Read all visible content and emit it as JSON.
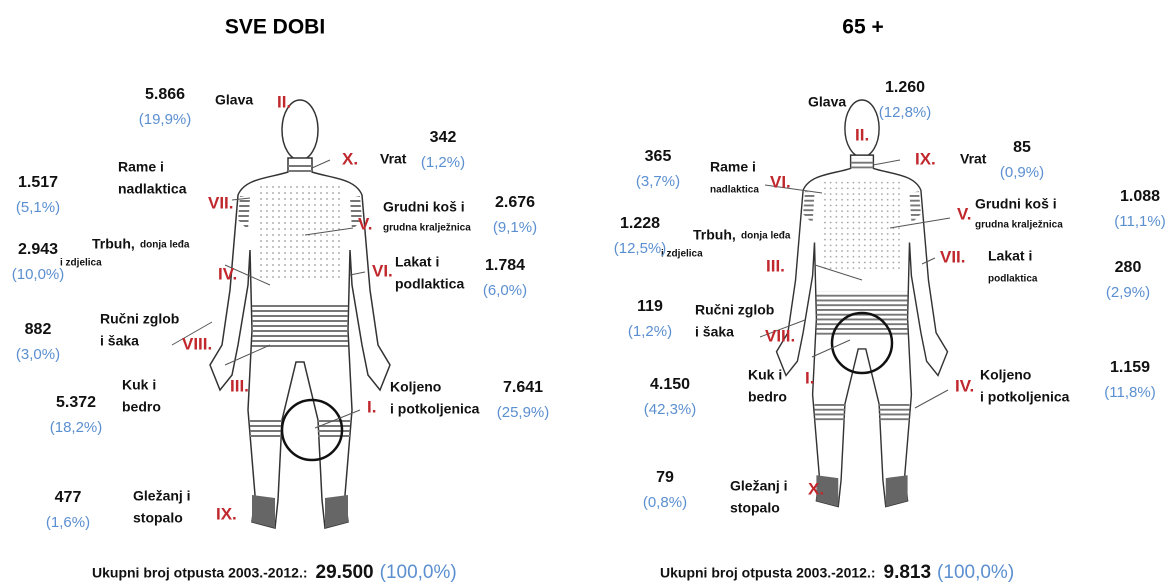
{
  "panels": [
    {
      "title": "SVE DOBI",
      "regions": [
        {
          "name": [
            "Glava"
          ],
          "numeral": "II.",
          "count": "5.866",
          "percent": "(19,9%)"
        },
        {
          "name": [
            "Vrat"
          ],
          "numeral": "X.",
          "count": "342",
          "percent": "(1,2%)"
        },
        {
          "name": [
            "Rame i",
            "nadlaktica"
          ],
          "numeral": "VII.",
          "count": "1.517",
          "percent": "(5,1%)"
        },
        {
          "name": [
            "Grudni koš i",
            "grudna kralježnica"
          ],
          "numeral": "V.",
          "count": "2.676",
          "percent": "(9,1%)"
        },
        {
          "name": [
            "Trbuh,",
            "donja leđa",
            "i zdjelica"
          ],
          "numeral": "IV.",
          "count": "2.943",
          "percent": "(10,0%)"
        },
        {
          "name": [
            "Lakat i",
            "podlaktica"
          ],
          "numeral": "VI.",
          "count": "1.784",
          "percent": "(6,0%)"
        },
        {
          "name": [
            "Ručni zglob",
            "i šaka"
          ],
          "numeral": "VIII.",
          "count": "882",
          "percent": "(3,0%)"
        },
        {
          "name": [
            "Kuk i",
            "bedro"
          ],
          "numeral": "III.",
          "count": "5.372",
          "percent": "(18,2%)"
        },
        {
          "name": [
            "Koljeno",
            "i potkoljenica"
          ],
          "numeral": "I.",
          "count": "7.641",
          "percent": "(25,9%)"
        },
        {
          "name": [
            "Gležanj i",
            "stopalo"
          ],
          "numeral": "IX.",
          "count": "477",
          "percent": "(1,6%)"
        }
      ],
      "footer": {
        "label": "Ukupni broj otpusta 2003.-2012.:",
        "total": "29.500",
        "percent": "(100,0%)"
      }
    },
    {
      "title": "65 +",
      "regions": [
        {
          "name": [
            "Glava"
          ],
          "numeral": "II.",
          "count": "1.260",
          "percent": "(12,8%)"
        },
        {
          "name": [
            "Vrat"
          ],
          "numeral": "IX.",
          "count": "85",
          "percent": "(0,9%)"
        },
        {
          "name": [
            "Rame i",
            "nadlaktica"
          ],
          "numeral": "VI.",
          "count": "365",
          "percent": "(3,7%)"
        },
        {
          "name": [
            "Grudni koš i",
            "grudna kralježnica"
          ],
          "numeral": "V.",
          "count": "1.088",
          "percent": "(11,1%)"
        },
        {
          "name": [
            "Trbuh,",
            "donja leđa",
            "i zdjelica"
          ],
          "numeral": "III.",
          "count": "1.228",
          "percent": "(12,5%)"
        },
        {
          "name": [
            "Lakat i",
            "podlaktica"
          ],
          "numeral": "VII.",
          "count": "280",
          "percent": "(2,9%)"
        },
        {
          "name": [
            "Ručni zglob",
            "i šaka"
          ],
          "numeral": "VIII.",
          "count": "119",
          "percent": "(1,2%)"
        },
        {
          "name": [
            "Kuk i",
            "bedro"
          ],
          "numeral": "I.",
          "count": "4.150",
          "percent": "(42,3%)"
        },
        {
          "name": [
            "Koljeno",
            "i potkoljenica"
          ],
          "numeral": "IV.",
          "count": "1.159",
          "percent": "(11,8%)"
        },
        {
          "name": [
            "Gležanj i",
            "stopalo"
          ],
          "numeral": "X.",
          "count": "79",
          "percent": "(0,8%)"
        }
      ],
      "footer": {
        "label": "Ukupni broj otpusta 2003.-2012.:",
        "total": "9.813",
        "percent": "(100,0%)"
      }
    }
  ]
}
